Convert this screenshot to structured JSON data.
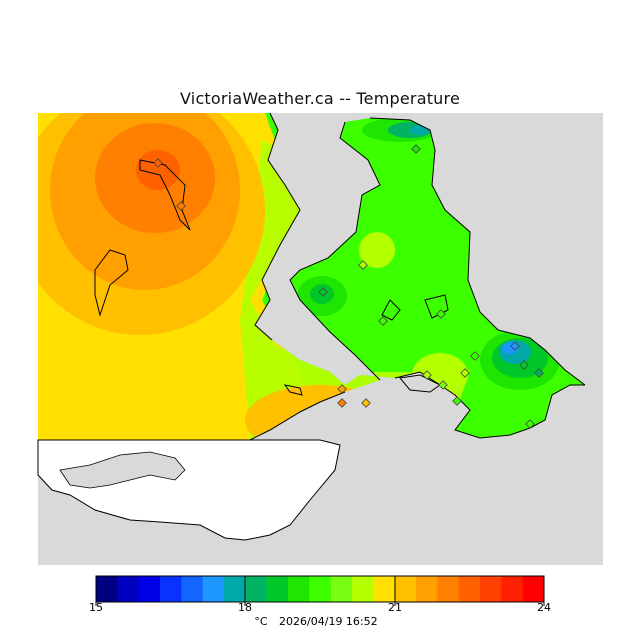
{
  "title": "VictoriaWeather.ca -- Temperature",
  "colorbar": {
    "min": 15,
    "max": 24,
    "ticks": [
      "15",
      "18",
      "21",
      "24"
    ],
    "unit": "°C",
    "timestamp": "2026/04/19 16:52",
    "colors": [
      "#000080",
      "#0000c0",
      "#0000e8",
      "#0a32ff",
      "#1464ff",
      "#1e96ff",
      "#00a8a8",
      "#00b464",
      "#00c828",
      "#1ee600",
      "#3cff00",
      "#78ff14",
      "#b4ff00",
      "#ffe000",
      "#ffc000",
      "#ffa000",
      "#ff8000",
      "#ff6000",
      "#ff4000",
      "#ff2000",
      "#ff0000"
    ]
  },
  "map_colors": {
    "water_land_gray": "#d9d9d9",
    "usa_land": "#ffffff",
    "hot": "#ff6000",
    "warm": "#ffa000",
    "mild": "#ffe000",
    "cool": "#3cff00",
    "cold": "#00b464",
    "coldest": "#1e96ff"
  },
  "stations": [
    {
      "id": "s1",
      "temp": 23.1
    },
    {
      "id": "s2",
      "temp": 22.4
    },
    {
      "id": "s3",
      "temp": 19.2
    },
    {
      "id": "s4",
      "temp": 20.8
    },
    {
      "id": "s5",
      "temp": 21.2
    },
    {
      "id": "s6",
      "temp": 22.6
    },
    {
      "id": "s7",
      "temp": 22.3
    },
    {
      "id": "s8",
      "temp": 21.6
    },
    {
      "id": "s9",
      "temp": 20.9
    },
    {
      "id": "s10",
      "temp": 20.4
    },
    {
      "id": "s11",
      "temp": 21.0
    },
    {
      "id": "s12",
      "temp": 19.8
    },
    {
      "id": "s13",
      "temp": 18.6
    },
    {
      "id": "s14",
      "temp": 18.9
    },
    {
      "id": "s15",
      "temp": 18.4
    },
    {
      "id": "s16",
      "temp": 20.1
    },
    {
      "id": "s17",
      "temp": 18.2
    },
    {
      "id": "s18",
      "temp": 21.1
    },
    {
      "id": "s19",
      "temp": 20.3
    }
  ]
}
